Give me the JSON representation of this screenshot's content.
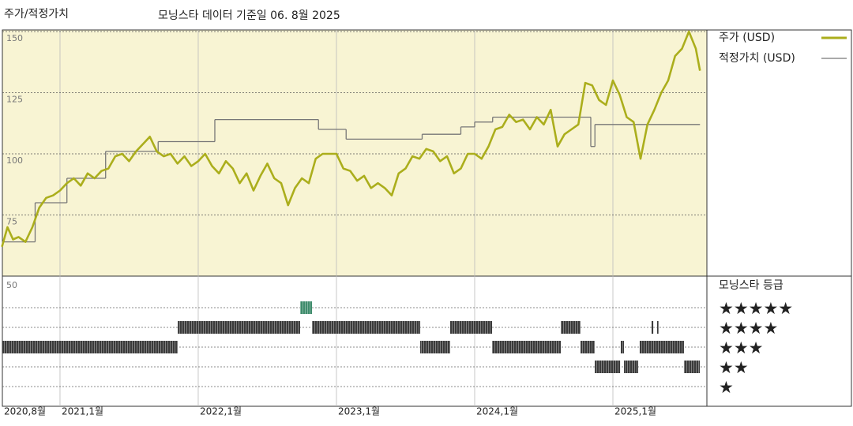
{
  "chart_data": {
    "type": "line",
    "title": "주가/적정가치",
    "subtitle": "모닝스타 데이터 기준일 06. 8월 2025",
    "xlim": [
      2020.583,
      2025.68
    ],
    "xticks": [
      {
        "value": 2020.583,
        "label": "2020,8월"
      },
      {
        "value": 2021,
        "label": "2021,1월"
      },
      {
        "value": 2022,
        "label": "2022,1월"
      },
      {
        "value": 2023,
        "label": "2023,1월"
      },
      {
        "value": 2024,
        "label": "2024,1월"
      },
      {
        "value": 2025,
        "label": "2025,1월"
      }
    ],
    "ylim": [
      50,
      150
    ],
    "yticks": [
      75,
      100,
      125,
      150
    ],
    "grid": true,
    "background": "#f8f4d3",
    "series": [
      {
        "name": "주가 (USD)",
        "color": "#abae1c",
        "style": "line",
        "x": [
          2020.58,
          2020.62,
          2020.66,
          2020.7,
          2020.75,
          2020.8,
          2020.85,
          2020.9,
          2020.95,
          2021.0,
          2021.05,
          2021.1,
          2021.15,
          2021.2,
          2021.25,
          2021.3,
          2021.35,
          2021.4,
          2021.45,
          2021.5,
          2021.55,
          2021.6,
          2021.65,
          2021.7,
          2021.75,
          2021.8,
          2021.85,
          2021.9,
          2021.95,
          2022.0,
          2022.05,
          2022.1,
          2022.15,
          2022.2,
          2022.25,
          2022.3,
          2022.35,
          2022.4,
          2022.45,
          2022.5,
          2022.55,
          2022.6,
          2022.65,
          2022.7,
          2022.75,
          2022.8,
          2022.85,
          2022.9,
          2022.95,
          2023.0,
          2023.05,
          2023.1,
          2023.15,
          2023.2,
          2023.25,
          2023.3,
          2023.35,
          2023.4,
          2023.45,
          2023.5,
          2023.55,
          2023.6,
          2023.65,
          2023.7,
          2023.75,
          2023.8,
          2023.85,
          2023.9,
          2023.95,
          2024.0,
          2024.05,
          2024.1,
          2024.15,
          2024.2,
          2024.25,
          2024.3,
          2024.35,
          2024.4,
          2024.45,
          2024.5,
          2024.55,
          2024.6,
          2024.65,
          2024.7,
          2024.75,
          2024.8,
          2024.85,
          2024.9,
          2024.95,
          2025.0,
          2025.05,
          2025.1,
          2025.15,
          2025.2,
          2025.25,
          2025.3,
          2025.35,
          2025.4,
          2025.45,
          2025.5,
          2025.55,
          2025.6,
          2025.63
        ],
        "values": [
          62,
          70,
          65,
          66,
          64,
          70,
          78,
          82,
          83,
          85,
          88,
          90,
          87,
          92,
          90,
          93,
          94,
          99,
          100,
          97,
          101,
          104,
          107,
          101,
          99,
          100,
          96,
          99,
          95,
          97,
          100,
          95,
          92,
          97,
          94,
          88,
          92,
          85,
          91,
          96,
          90,
          88,
          79,
          86,
          90,
          88,
          98,
          100,
          100,
          100,
          94,
          93,
          89,
          91,
          86,
          88,
          86,
          83,
          92,
          94,
          99,
          98,
          102,
          101,
          97,
          99,
          92,
          94,
          100,
          100,
          98,
          103,
          110,
          111,
          116,
          113,
          114,
          110,
          115,
          112,
          118,
          103,
          108,
          110,
          112,
          129,
          128,
          122,
          120,
          130,
          124,
          115,
          113,
          98,
          112,
          118,
          125,
          130,
          140,
          143,
          150,
          143,
          134
        ]
      },
      {
        "name": "적정가치 (USD)",
        "color": "#777777",
        "style": "step",
        "x": [
          2020.58,
          2020.82,
          2021.05,
          2021.33,
          2021.71,
          2022.12,
          2022.87,
          2023.07,
          2023.62,
          2023.9,
          2024.0,
          2024.13,
          2024.84,
          2024.87
        ],
        "values": [
          64,
          80,
          90,
          101,
          105,
          114,
          110,
          106,
          108,
          111,
          113,
          115,
          103,
          112
        ]
      }
    ],
    "rating_title": "모닝스타 등급",
    "rating_axis_label": "50",
    "rating_labels": [
      "★★★★★",
      "★★★★",
      "★★★",
      "★★",
      "★"
    ],
    "rating_colors": {
      "5": "#3f8c6c",
      "default": "#3a3a3a"
    },
    "ratings": {
      "start": [
        2020.583,
        2021.852,
        2022.737,
        2022.823,
        2023.606,
        2023.823,
        2024.126,
        2024.623,
        2024.766,
        2024.869,
        2025.057,
        2025.08,
        2025.194,
        2025.28,
        2025.32,
        2025.514
      ],
      "end": [
        2021.852,
        2022.737,
        2022.823,
        2023.606,
        2023.823,
        2024.126,
        2024.623,
        2024.766,
        2024.869,
        2025.052,
        2025.08,
        2025.183,
        2025.514,
        2025.292,
        2025.332,
        2025.629
      ],
      "stars": [
        3,
        4,
        5,
        4,
        3,
        4,
        3,
        4,
        3,
        2,
        3,
        2,
        3,
        4,
        4,
        2
      ]
    }
  }
}
